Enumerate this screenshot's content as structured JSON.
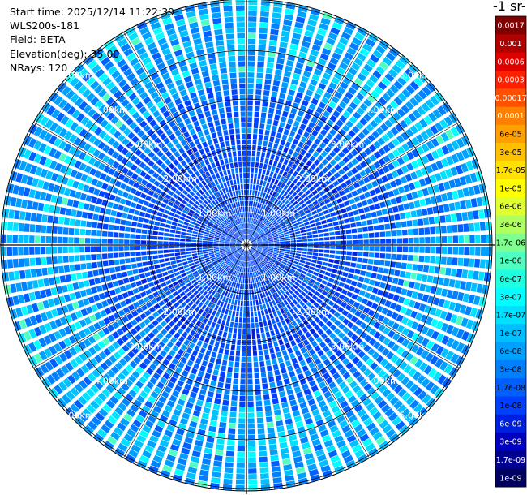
{
  "info": {
    "start_time": "Start time: 2025/12/14 11:22:39",
    "instrument": "WLS200s-181",
    "field": "Field: BETA",
    "elevation": "Elevation(deg): 35.00",
    "nrays": "NRays: 120"
  },
  "colorbar": {
    "title": "-1 sr-",
    "labels": [
      "0.0017",
      "0.001",
      "0.0006",
      "0.0003",
      "0.00017",
      "0.0001",
      "6e-05",
      "3e-05",
      "1.7e-05",
      "1e-05",
      "6e-06",
      "3e-06",
      "1.7e-06",
      "1e-06",
      "6e-07",
      "3e-07",
      "1.7e-07",
      "1e-07",
      "6e-08",
      "3e-08",
      "1.7e-08",
      "1e-08",
      "6e-09",
      "3e-09",
      "1.7e-09",
      "1e-09"
    ],
    "colors": [
      "#800000",
      "#b00000",
      "#e00000",
      "#ff2000",
      "#ff5000",
      "#ff8000",
      "#ffa000",
      "#ffc000",
      "#ffe000",
      "#ffff00",
      "#e0ff30",
      "#b0ff60",
      "#80ff90",
      "#50ffc0",
      "#20ffe0",
      "#00ffff",
      "#00e0ff",
      "#00c0ff",
      "#00a0ff",
      "#0080ff",
      "#0060ff",
      "#0040ff",
      "#0020e0",
      "#0000c0",
      "#000090",
      "#000060"
    ]
  },
  "chart_data": {
    "type": "heatmap",
    "projection": "polar (PPI scan)",
    "field": "BETA",
    "elevation_deg": 35.0,
    "n_rays": 120,
    "range_rings_km": [
      1,
      2,
      3,
      4,
      5
    ],
    "range_ring_labels": [
      "1.00km",
      "2.00km",
      "3.00km",
      "4.00km",
      "5.00km"
    ],
    "color_scale": "log",
    "value_range": [
      1e-09,
      0.0017
    ],
    "dominant_values": "approximately 1e-08 to 1.7e-07 across the scan"
  }
}
